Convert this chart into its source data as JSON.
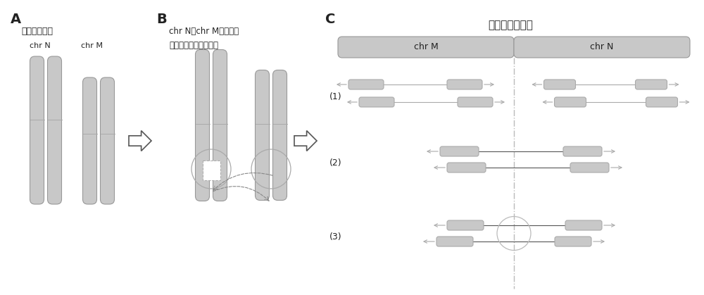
{
  "bg_color": "#ffffff",
  "chr_color": "#c0c0c0",
  "chr_outline": "#999999",
  "text_color": "#222222",
  "panel_A_label": "A",
  "panel_B_label": "B",
  "panel_C_label": "C",
  "A_title": "成对的染色体",
  "A_chrN": "chr N",
  "A_chrM": "chr M",
  "B_title1": "chr N和chr M的某一条",
  "B_title2": "染色体之间发生了易位",
  "C_title": "染色体易位断点",
  "C_chrM": "chr M",
  "C_chrN": "chr N",
  "C_label1": "(1)",
  "C_label2": "(2)",
  "C_label3": "(3)"
}
